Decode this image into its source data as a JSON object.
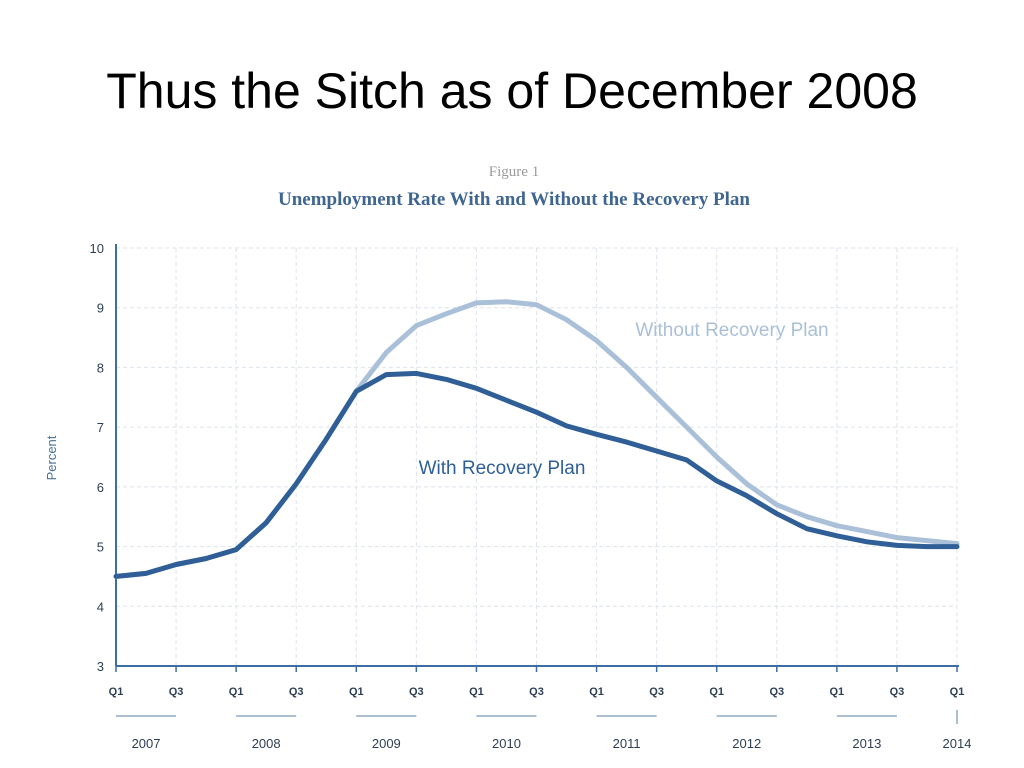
{
  "slide": {
    "title": "Thus the Sitch as of December 2008"
  },
  "chart_data": {
    "type": "line",
    "figure_label": "Figure 1",
    "title": "Unemployment Rate With and Without the Recovery Plan",
    "ylabel": "Percent",
    "xlabel": "",
    "ylim": [
      3,
      10
    ],
    "yticks": [
      3,
      4,
      5,
      6,
      7,
      8,
      9,
      10
    ],
    "grid": true,
    "x_quarter_ticks": [
      "Q1",
      "Q3",
      "Q1",
      "Q3",
      "Q1",
      "Q3",
      "Q1",
      "Q3",
      "Q1",
      "Q3",
      "Q1",
      "Q3",
      "Q1",
      "Q3",
      "Q1"
    ],
    "x_years": [
      "2007",
      "2008",
      "2009",
      "2010",
      "2011",
      "2012",
      "2013",
      "2014"
    ],
    "x": [
      "2007 Q1",
      "2007 Q2",
      "2007 Q3",
      "2007 Q4",
      "2008 Q1",
      "2008 Q2",
      "2008 Q3",
      "2008 Q4",
      "2009 Q1",
      "2009 Q2",
      "2009 Q3",
      "2009 Q4",
      "2010 Q1",
      "2010 Q2",
      "2010 Q3",
      "2010 Q4",
      "2011 Q1",
      "2011 Q2",
      "2011 Q3",
      "2011 Q4",
      "2012 Q1",
      "2012 Q2",
      "2012 Q3",
      "2012 Q4",
      "2013 Q1",
      "2013 Q2",
      "2013 Q3",
      "2013 Q4",
      "2014 Q1"
    ],
    "series": [
      {
        "name": "Without Recovery Plan",
        "color": "#a9c0d8",
        "values": [
          4.5,
          4.55,
          4.7,
          4.8,
          4.95,
          5.4,
          6.05,
          6.8,
          7.6,
          8.25,
          8.7,
          8.9,
          9.08,
          9.1,
          9.05,
          8.8,
          8.45,
          8.0,
          7.5,
          7.0,
          6.5,
          6.05,
          5.7,
          5.5,
          5.35,
          5.25,
          5.15,
          5.1,
          5.05
        ]
      },
      {
        "name": "With Recovery Plan",
        "color": "#2f5f96",
        "values": [
          4.5,
          4.55,
          4.7,
          4.8,
          4.95,
          5.4,
          6.05,
          6.8,
          7.6,
          7.88,
          7.9,
          7.8,
          7.65,
          7.45,
          7.25,
          7.02,
          6.88,
          6.75,
          6.6,
          6.45,
          6.1,
          5.85,
          5.55,
          5.3,
          5.18,
          5.08,
          5.02,
          5.0,
          5.0
        ]
      }
    ]
  }
}
